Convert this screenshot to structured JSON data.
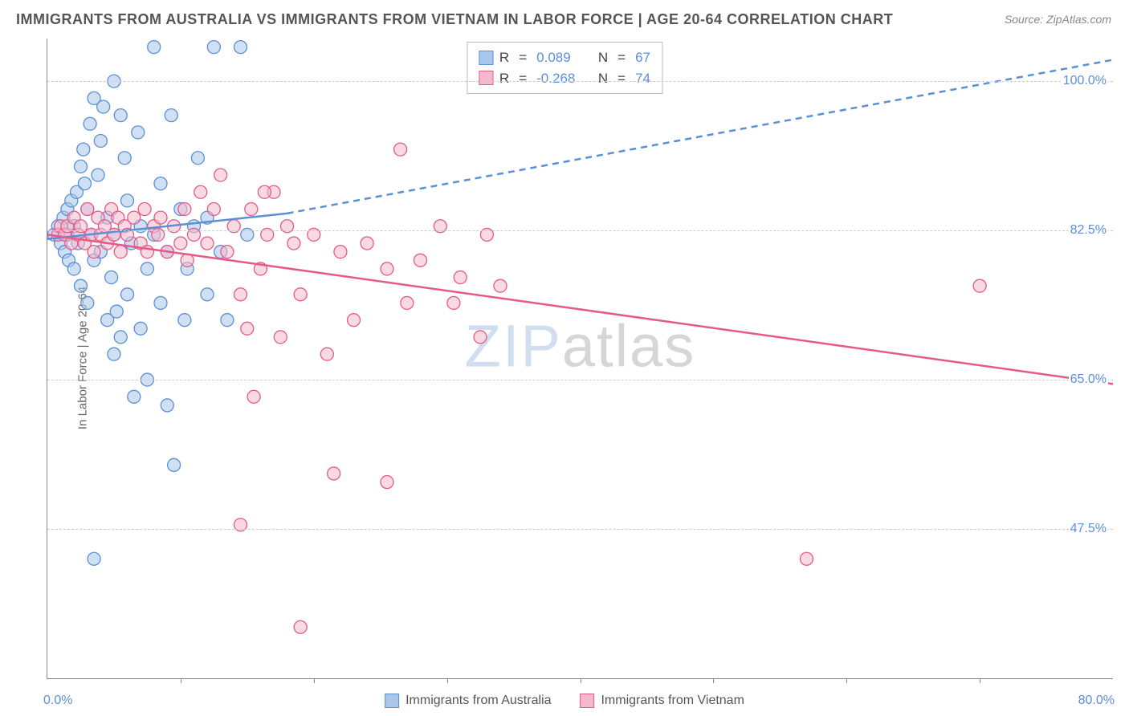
{
  "title": "IMMIGRANTS FROM AUSTRALIA VS IMMIGRANTS FROM VIETNAM IN LABOR FORCE | AGE 20-64 CORRELATION CHART",
  "source_label": "Source: ",
  "source_value": "ZipAtlas.com",
  "y_axis_label": "In Labor Force | Age 20-64",
  "watermark_a": "ZIP",
  "watermark_b": "atlas",
  "chart": {
    "type": "scatter",
    "x_min": 0.0,
    "x_max": 80.0,
    "y_min": 30.0,
    "y_max": 105.0,
    "x_tick_step_pct": 12.5,
    "x_label_min": "0.0%",
    "x_label_max": "80.0%",
    "y_gridlines": [
      {
        "value": 100.0,
        "label": "100.0%"
      },
      {
        "value": 82.5,
        "label": "82.5%"
      },
      {
        "value": 65.0,
        "label": "65.0%"
      },
      {
        "value": 47.5,
        "label": "47.5%"
      }
    ],
    "background_color": "#ffffff",
    "grid_color": "#cccccc",
    "axis_color": "#888888",
    "tick_label_color": "#5b8fd6",
    "marker_radius": 8,
    "marker_opacity": 0.55,
    "line_width": 2.5
  },
  "series": [
    {
      "name": "Immigrants from Australia",
      "color_fill": "#a9c7ea",
      "color_stroke": "#5b8fd6",
      "correlation_R": "0.089",
      "N": "67",
      "regression": {
        "x1": 0,
        "y1": 81.5,
        "x2": 18,
        "y2": 84.5,
        "extrapolate_to_x": 80,
        "extrapolate_to_y": 102.5
      },
      "points": [
        [
          0.5,
          82
        ],
        [
          0.8,
          83
        ],
        [
          1.0,
          81
        ],
        [
          1.2,
          84
        ],
        [
          1.3,
          80
        ],
        [
          1.5,
          85
        ],
        [
          1.5,
          82
        ],
        [
          1.6,
          79
        ],
        [
          1.8,
          86
        ],
        [
          2.0,
          83
        ],
        [
          2.0,
          78
        ],
        [
          2.2,
          87
        ],
        [
          2.3,
          81
        ],
        [
          2.5,
          90
        ],
        [
          2.5,
          76
        ],
        [
          2.7,
          92
        ],
        [
          2.8,
          88
        ],
        [
          3.0,
          85
        ],
        [
          3.0,
          74
        ],
        [
          3.2,
          95
        ],
        [
          3.3,
          82
        ],
        [
          3.5,
          98
        ],
        [
          3.5,
          79
        ],
        [
          3.8,
          89
        ],
        [
          4.0,
          93
        ],
        [
          4.0,
          80
        ],
        [
          4.2,
          97
        ],
        [
          4.5,
          84
        ],
        [
          4.5,
          72
        ],
        [
          4.8,
          77
        ],
        [
          5.0,
          100
        ],
        [
          5.0,
          82
        ],
        [
          5.2,
          73
        ],
        [
          5.5,
          96
        ],
        [
          5.5,
          70
        ],
        [
          5.8,
          91
        ],
        [
          6.0,
          86
        ],
        [
          6.0,
          75
        ],
        [
          6.3,
          81
        ],
        [
          6.5,
          63
        ],
        [
          6.8,
          94
        ],
        [
          7.0,
          83
        ],
        [
          7.0,
          71
        ],
        [
          7.5,
          78
        ],
        [
          7.5,
          65
        ],
        [
          8.0,
          104
        ],
        [
          8.0,
          82
        ],
        [
          8.5,
          74
        ],
        [
          8.5,
          88
        ],
        [
          9.0,
          80
        ],
        [
          9.0,
          62
        ],
        [
          9.3,
          96
        ],
        [
          9.5,
          55
        ],
        [
          10.0,
          85
        ],
        [
          10.3,
          72
        ],
        [
          10.5,
          78
        ],
        [
          11.0,
          83
        ],
        [
          11.3,
          91
        ],
        [
          12.0,
          75
        ],
        [
          12.0,
          84
        ],
        [
          12.5,
          104
        ],
        [
          13.0,
          80
        ],
        [
          13.5,
          72
        ],
        [
          14.5,
          104
        ],
        [
          15.0,
          82
        ],
        [
          3.5,
          44
        ],
        [
          5.0,
          68
        ]
      ]
    },
    {
      "name": "Immigrants from Vietnam",
      "color_fill": "#f4b9ca",
      "color_stroke": "#e65a8a",
      "correlation_R": "-0.268",
      "N": "74",
      "regression": {
        "x1": 0,
        "y1": 82.0,
        "x2": 80,
        "y2": 64.5
      },
      "points": [
        [
          0.8,
          82
        ],
        [
          1.0,
          83
        ],
        [
          1.3,
          82
        ],
        [
          1.5,
          83
        ],
        [
          1.8,
          81
        ],
        [
          2.0,
          84
        ],
        [
          2.3,
          82
        ],
        [
          2.5,
          83
        ],
        [
          2.8,
          81
        ],
        [
          3.0,
          85
        ],
        [
          3.3,
          82
        ],
        [
          3.5,
          80
        ],
        [
          3.8,
          84
        ],
        [
          4.0,
          82
        ],
        [
          4.3,
          83
        ],
        [
          4.5,
          81
        ],
        [
          4.8,
          85
        ],
        [
          5.0,
          82
        ],
        [
          5.3,
          84
        ],
        [
          5.5,
          80
        ],
        [
          5.8,
          83
        ],
        [
          6.0,
          82
        ],
        [
          6.5,
          84
        ],
        [
          7.0,
          81
        ],
        [
          7.3,
          85
        ],
        [
          7.5,
          80
        ],
        [
          8.0,
          83
        ],
        [
          8.3,
          82
        ],
        [
          8.5,
          84
        ],
        [
          9.0,
          80
        ],
        [
          9.5,
          83
        ],
        [
          10.0,
          81
        ],
        [
          10.3,
          85
        ],
        [
          10.5,
          79
        ],
        [
          11.0,
          82
        ],
        [
          11.5,
          87
        ],
        [
          12.0,
          81
        ],
        [
          12.5,
          85
        ],
        [
          13.0,
          89
        ],
        [
          13.5,
          80
        ],
        [
          14.0,
          83
        ],
        [
          14.5,
          75
        ],
        [
          15.0,
          71
        ],
        [
          15.3,
          85
        ],
        [
          16.0,
          78
        ],
        [
          16.5,
          82
        ],
        [
          17.0,
          87
        ],
        [
          17.5,
          70
        ],
        [
          18.0,
          83
        ],
        [
          18.5,
          81
        ],
        [
          19.0,
          75
        ],
        [
          20.0,
          82
        ],
        [
          21.0,
          68
        ],
        [
          22.0,
          80
        ],
        [
          23.0,
          72
        ],
        [
          24.0,
          81
        ],
        [
          25.5,
          78
        ],
        [
          26.5,
          92
        ],
        [
          27.0,
          74
        ],
        [
          28.0,
          79
        ],
        [
          29.5,
          83
        ],
        [
          31.0,
          77
        ],
        [
          32.5,
          70
        ],
        [
          34.0,
          76
        ],
        [
          21.5,
          54
        ],
        [
          25.5,
          53
        ],
        [
          14.5,
          48
        ],
        [
          19.0,
          36
        ],
        [
          15.5,
          63
        ],
        [
          30.5,
          74
        ],
        [
          33.0,
          82
        ],
        [
          57.0,
          44
        ],
        [
          70.0,
          76
        ],
        [
          16.3,
          87
        ]
      ]
    }
  ],
  "legend_top_labels": {
    "R": "R",
    "eq": "=",
    "N": "N"
  },
  "legend_bottom": [
    {
      "label": "Immigrants from Australia",
      "fill": "#a9c7ea",
      "stroke": "#5b8fd6"
    },
    {
      "label": "Immigrants from Vietnam",
      "fill": "#f4b9ca",
      "stroke": "#e65a8a"
    }
  ]
}
